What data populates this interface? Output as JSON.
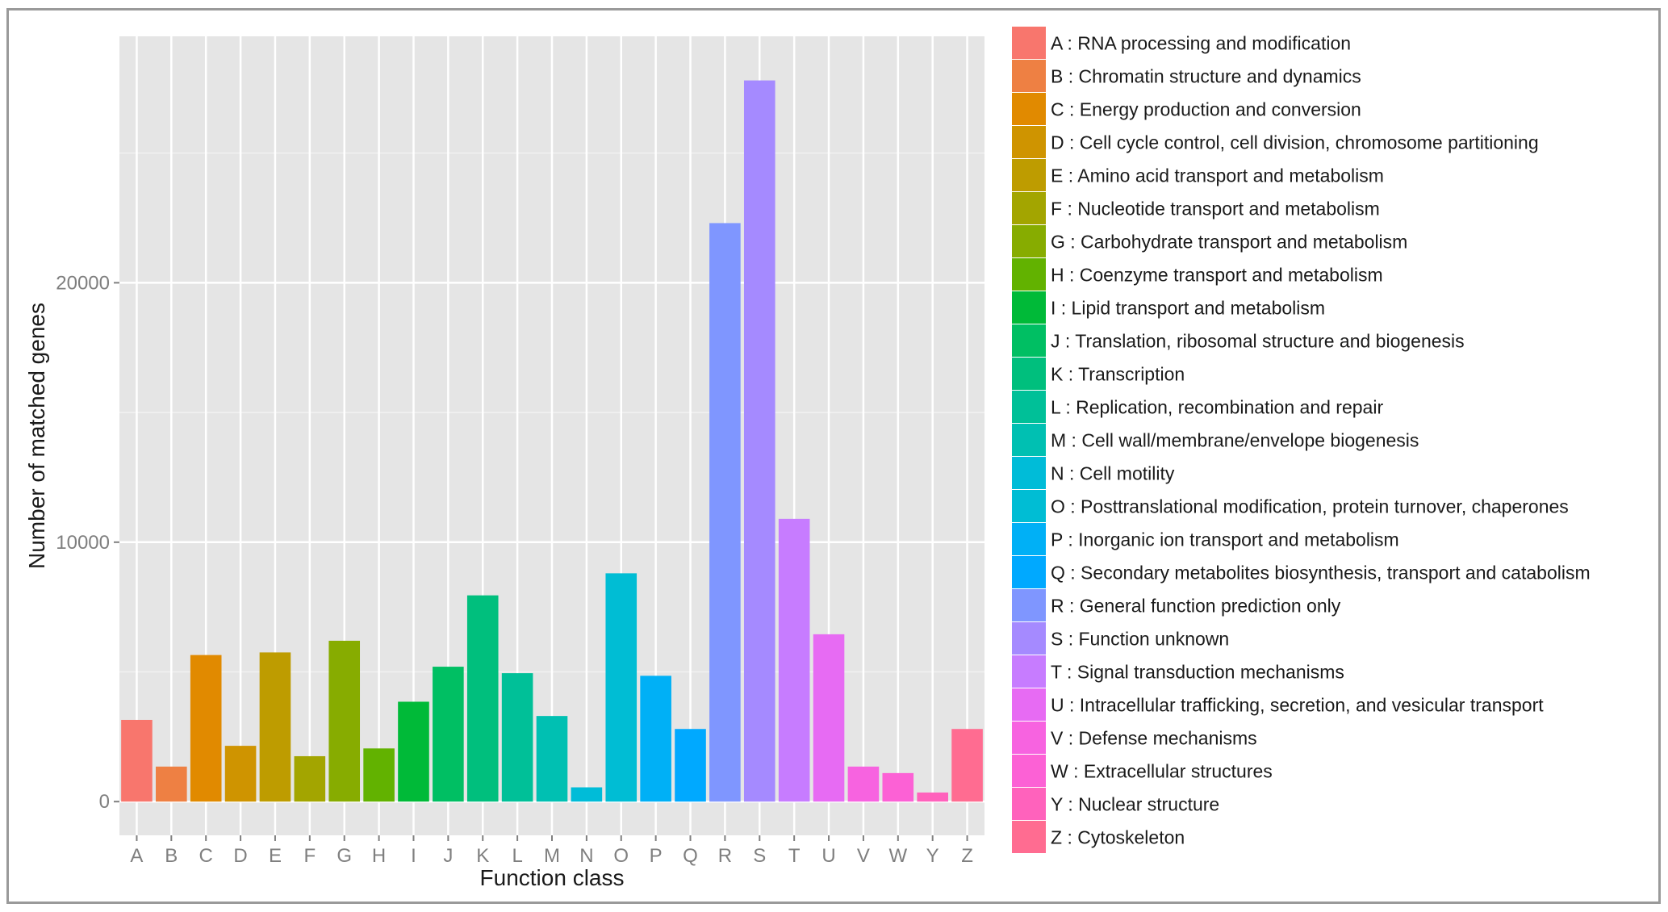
{
  "chart_data": {
    "type": "bar",
    "title": "",
    "xlabel": "Function class",
    "ylabel": "Number of matched genes",
    "ylim": [
      -1300,
      29500
    ],
    "yticks": [
      0,
      10000,
      20000
    ],
    "grid": true,
    "legend_position": "right",
    "categories": [
      "A",
      "B",
      "C",
      "D",
      "E",
      "F",
      "G",
      "H",
      "I",
      "J",
      "K",
      "L",
      "M",
      "N",
      "O",
      "P",
      "Q",
      "R",
      "S",
      "T",
      "U",
      "V",
      "W",
      "Y",
      "Z"
    ],
    "values": [
      3150,
      1350,
      5650,
      2150,
      5750,
      1750,
      6200,
      2050,
      3850,
      5200,
      7950,
      4950,
      3300,
      550,
      8800,
      4850,
      2800,
      22300,
      27800,
      10900,
      6450,
      1350,
      1100,
      350,
      2800
    ],
    "colors": [
      "#F8766D",
      "#EE8043",
      "#E18A00",
      "#CF9400",
      "#BE9C00",
      "#A3A500",
      "#87AC00",
      "#62B200",
      "#00BA38",
      "#00BF63",
      "#00BF7D",
      "#00C098",
      "#00C0B2",
      "#00BCD8",
      "#00BDD4",
      "#00B0F6",
      "#00A9FF",
      "#7F96FF",
      "#A58AFF",
      "#C77CFF",
      "#E76BF3",
      "#F763E0",
      "#FC61D5",
      "#FF62BC",
      "#FF6C91"
    ],
    "legend": [
      "A : RNA processing and modification",
      "B : Chromatin structure and dynamics",
      "C : Energy production and conversion",
      "D : Cell cycle control, cell division, chromosome partitioning",
      "E : Amino acid transport and metabolism",
      "F : Nucleotide transport and metabolism",
      "G : Carbohydrate transport and metabolism",
      "H : Coenzyme transport and metabolism",
      "I : Lipid transport and metabolism",
      "J : Translation, ribosomal structure and biogenesis",
      "K : Transcription",
      "L : Replication, recombination and repair",
      "M : Cell wall/membrane/envelope biogenesis",
      "N : Cell motility",
      "O : Posttranslational modification, protein turnover, chaperones",
      "P : Inorganic ion transport and metabolism",
      "Q : Secondary metabolites biosynthesis, transport and catabolism",
      "R : General function prediction only",
      "S : Function unknown",
      "T : Signal transduction mechanisms",
      "U : Intracellular trafficking, secretion, and vesicular transport",
      "V : Defense mechanisms",
      "W : Extracellular structures",
      "Y : Nuclear structure",
      "Z : Cytoskeleton"
    ]
  },
  "colors": {
    "panel_background": "#E5E5E5",
    "grid_major": "#FFFFFF",
    "grid_minor": "#F2F2F2",
    "tick_label": "#7F7F7F"
  }
}
